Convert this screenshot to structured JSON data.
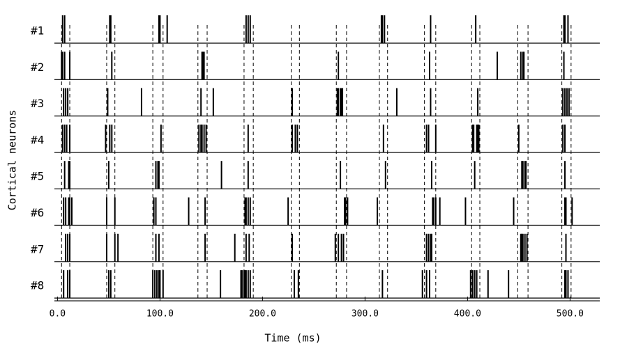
{
  "chart_data": {
    "type": "raster",
    "xlabel": "Time (ms)",
    "ylabel": "Cortical neurons",
    "xlim": [
      -3,
      529
    ],
    "xticks": [
      {
        "value": 0,
        "label": "0.0"
      },
      {
        "value": 100,
        "label": "100.0"
      },
      {
        "value": 200,
        "label": "200.0"
      },
      {
        "value": 300,
        "label": "300.0"
      },
      {
        "value": 400,
        "label": "400.0"
      },
      {
        "value": 500,
        "label": "500.0"
      }
    ],
    "color": "#000000",
    "markers": [
      4,
      12,
      48,
      56,
      93,
      103,
      137,
      146,
      182,
      191,
      228,
      236,
      272,
      282,
      314,
      322,
      358,
      369,
      404,
      412,
      449,
      459,
      492,
      501
    ],
    "series": [
      {
        "name": "#1",
        "values": [
          5,
          7,
          51,
          52,
          99,
          100,
          107,
          184,
          186,
          188,
          316,
          317,
          319,
          364,
          408,
          494,
          495,
          498
        ]
      },
      {
        "name": "#2",
        "values": [
          4,
          5,
          7,
          12,
          53,
          141,
          142,
          143,
          274,
          363,
          429,
          452,
          454,
          455,
          494
        ]
      },
      {
        "name": "#3",
        "values": [
          6,
          8,
          10,
          49,
          82,
          140,
          152,
          229,
          273,
          274,
          276,
          277,
          278,
          331,
          364,
          410,
          493,
          495,
          497,
          499
        ]
      },
      {
        "name": "#4",
        "values": [
          5,
          7,
          9,
          12,
          47,
          51,
          53,
          101,
          138,
          140,
          141,
          143,
          145,
          186,
          229,
          232,
          234,
          318,
          360,
          362,
          369,
          405,
          406,
          409,
          410,
          411,
          450,
          493,
          495
        ]
      },
      {
        "name": "#5",
        "values": [
          7,
          11,
          12,
          50,
          96,
          98,
          99,
          160,
          186,
          276,
          320,
          365,
          407,
          453,
          454,
          456,
          457,
          495
        ]
      },
      {
        "name": "#6",
        "values": [
          6,
          8,
          11,
          12,
          14,
          48,
          56,
          94,
          96,
          128,
          144,
          183,
          184,
          186,
          188,
          225,
          280,
          281,
          283,
          312,
          366,
          367,
          369,
          373,
          398,
          445,
          495,
          496,
          502
        ]
      },
      {
        "name": "#7",
        "values": [
          8,
          10,
          12,
          48,
          56,
          59,
          96,
          99,
          144,
          173,
          184,
          187,
          229,
          271,
          274,
          277,
          279,
          360,
          362,
          364,
          365,
          452,
          453,
          454,
          456,
          458,
          496
        ]
      },
      {
        "name": "#8",
        "values": [
          6,
          10,
          12,
          50,
          52,
          93,
          95,
          97,
          99,
          100,
          103,
          159,
          179,
          180,
          182,
          183,
          184,
          186,
          188,
          231,
          235,
          317,
          356,
          360,
          363,
          403,
          405,
          407,
          409,
          420,
          440,
          495,
          496,
          498
        ]
      }
    ]
  }
}
